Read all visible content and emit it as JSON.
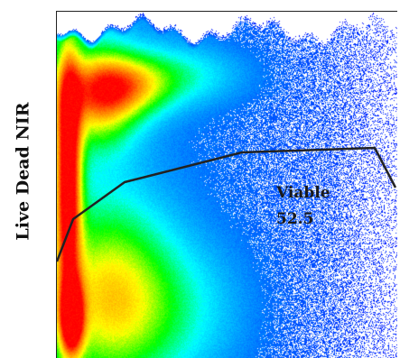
{
  "chart_data": {
    "type": "scatter",
    "subtype": "flow-cytometry-density",
    "ylabel": "Live Dead NIR",
    "xlabel": "",
    "title": "",
    "colormap": [
      "#0000ff",
      "#0088ff",
      "#00ffff",
      "#00ff00",
      "#ffff00",
      "#ff8800",
      "#ff0000"
    ],
    "gate": {
      "name": "Viable",
      "percent": "52.5",
      "line_color": "#222222"
    }
  }
}
